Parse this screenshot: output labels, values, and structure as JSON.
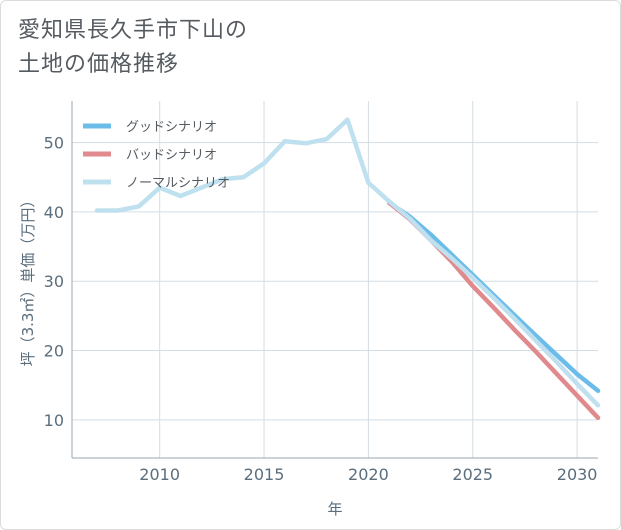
{
  "title_lines": [
    "愛知県長久手市下山の",
    "土地の価格推移"
  ],
  "chart_data": {
    "type": "line",
    "title": "愛知県長久手市下山の土地の価格推移",
    "xlabel": "年",
    "ylabel": "坪（3.3㎡）単価（万円）",
    "xlim": [
      2005.8,
      2031
    ],
    "ylim": [
      4.5,
      56
    ],
    "xticks": [
      2010,
      2015,
      2020,
      2025,
      2030
    ],
    "yticks": [
      10,
      20,
      30,
      40,
      50
    ],
    "legend_position": "top-left",
    "series": [
      {
        "name": "グッドシナリオ",
        "color": "#6cbcea",
        "x": [
          2021,
          2022,
          2023,
          2024,
          2025,
          2026,
          2027,
          2028,
          2029,
          2030,
          2031
        ],
        "y": [
          41.3,
          39.3,
          36.7,
          33.8,
          30.9,
          28.0,
          25.1,
          22.2,
          19.4,
          16.6,
          14.2
        ]
      },
      {
        "name": "バッドシナリオ",
        "color": "#e08a8e",
        "x": [
          2021,
          2022,
          2023,
          2024,
          2025,
          2026,
          2027,
          2028,
          2029,
          2030,
          2031
        ],
        "y": [
          41.3,
          38.9,
          35.9,
          32.8,
          29.3,
          26.2,
          23.0,
          19.9,
          16.7,
          13.5,
          10.3
        ]
      },
      {
        "name": "ノーマルシナリオ",
        "color": "#bfe0ee",
        "x": [
          2007,
          2008,
          2009,
          2010,
          2011,
          2012,
          2013,
          2014,
          2015,
          2016,
          2017,
          2018,
          2019,
          2020,
          2021,
          2022,
          2023,
          2024,
          2025,
          2026,
          2027,
          2028,
          2029,
          2030,
          2031
        ],
        "y": [
          40.2,
          40.2,
          40.8,
          43.5,
          42.3,
          43.5,
          44.7,
          45.0,
          47.0,
          50.2,
          49.9,
          50.5,
          53.3,
          44.2,
          41.5,
          39.0,
          35.9,
          33.3,
          30.5,
          27.6,
          24.6,
          21.5,
          18.4,
          15.2,
          12.1
        ]
      }
    ]
  }
}
